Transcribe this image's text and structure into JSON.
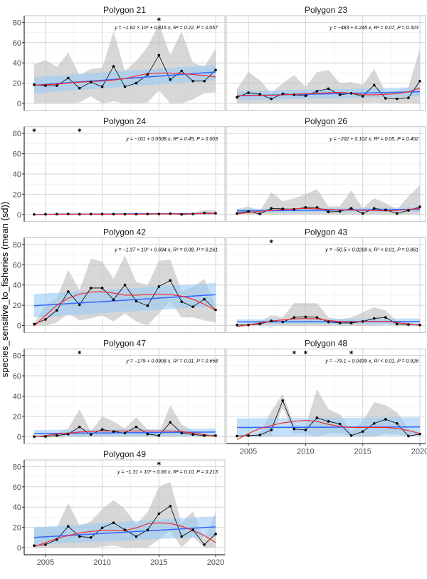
{
  "chart_data": {
    "type": "line",
    "ylabel": "species_sensitive_to_fisheries (mean (sd))",
    "xlabel": "",
    "x": [
      2004,
      2005,
      2006,
      2007,
      2008,
      2009,
      2010,
      2011,
      2012,
      2013,
      2014,
      2015,
      2016,
      2017,
      2018,
      2019,
      2020
    ],
    "xlim": [
      2003.5,
      2020.5
    ],
    "ylim": [
      -7,
      87
    ],
    "x_ticks": [
      2005,
      2010,
      2015,
      2020
    ],
    "y_ticks": [
      0,
      20,
      40,
      60,
      80
    ],
    "grid": true,
    "colors": {
      "mean_line": "#000000",
      "sd_band": "#bdbdbd",
      "lm_line": "#3366ff",
      "lm_band": "#99ccf5",
      "loess_line": "#ff2020"
    },
    "panels": [
      {
        "title": "Polygon 21",
        "equation": "y = −1.62 × 10³ + 0.816 x, R² = 0.22, P = 0.057",
        "stars": [
          2015
        ],
        "mean": [
          18.5,
          17.5,
          17.5,
          25,
          15,
          21,
          16.5,
          36.5,
          16.5,
          20,
          28.5,
          47.5,
          23.5,
          32,
          22,
          22,
          33
        ],
        "upper": [
          38,
          43,
          36,
          50,
          28,
          34,
          35,
          71,
          32,
          42,
          56,
          79,
          48,
          71,
          40,
          36,
          54
        ],
        "lower": [
          0,
          0,
          0,
          0,
          1,
          7,
          0,
          2,
          0,
          0,
          1,
          13,
          0,
          0,
          4,
          10,
          11
        ],
        "lm": [
          18,
          31
        ],
        "lm_ci_lower": [
          10,
          23
        ],
        "lm_ci_upper": [
          26,
          38
        ],
        "loess": [
          18,
          18.5,
          19,
          20,
          21,
          21.5,
          22,
          23,
          24.5,
          27,
          29.5,
          30,
          30,
          29.5,
          28.5,
          27.5,
          26
        ]
      },
      {
        "title": "Polygon 23",
        "equation": "y = −483 + 0.245 x, R² = 0.07, P = 0.323",
        "stars": [],
        "mean": [
          6,
          10.5,
          9,
          4.5,
          9.5,
          8.5,
          7.5,
          12,
          14.5,
          8.5,
          10,
          7,
          18,
          5,
          4.5,
          5.5,
          22
        ],
        "upper": [
          14,
          31,
          23,
          10,
          20,
          28,
          16,
          31,
          33,
          20,
          21,
          18,
          34,
          11,
          12,
          16,
          54
        ],
        "lower": [
          0,
          0,
          0,
          0,
          0,
          0,
          0,
          0,
          0,
          0,
          0,
          0,
          1,
          0,
          0,
          0,
          0
        ],
        "lm": [
          7.5,
          11.5
        ],
        "lm_ci_lower": [
          3,
          7
        ],
        "lm_ci_upper": [
          12,
          16
        ],
        "loess": [
          7.5,
          8,
          8,
          8,
          8.5,
          9,
          9.5,
          10,
          10.5,
          11,
          10,
          8.5,
          8.5,
          9,
          9.5,
          11.5,
          15
        ]
      },
      {
        "title": "Polygon 24",
        "equation": "y = −101 + 0.0508 x, R² = 0.45, P = 0.003",
        "stars": [
          2004,
          2008
        ],
        "mean": [
          0,
          0.2,
          0.3,
          0.4,
          0.2,
          0.3,
          0.3,
          0.3,
          0.2,
          0.3,
          0.4,
          0.5,
          0.8,
          0,
          0.5,
          1.5,
          1.2
        ],
        "upper": [
          0,
          0.5,
          0.8,
          1,
          0.6,
          0.8,
          0.8,
          0.8,
          0.6,
          0.8,
          1,
          1.2,
          1.8,
          0.5,
          1.5,
          4.5,
          4
        ],
        "lower": [
          0,
          0,
          0,
          0,
          0,
          0,
          0,
          0,
          0,
          0,
          0,
          0,
          0,
          0,
          0,
          0,
          0
        ],
        "lm": [
          0,
          1
        ],
        "lm_ci_lower": [
          -0.5,
          0.3
        ],
        "lm_ci_upper": [
          0.5,
          1.7
        ],
        "loess": [
          0,
          0.1,
          0.2,
          0.25,
          0.3,
          0.3,
          0.3,
          0.3,
          0.3,
          0.35,
          0.4,
          0.5,
          0.5,
          0.5,
          0.7,
          1,
          1.2
        ]
      },
      {
        "title": "Polygon 26",
        "equation": "y = −202 + 0.102 x, R² = 0.05, P = 0.402",
        "stars": [],
        "mean": [
          1,
          3,
          0.5,
          6,
          5.5,
          5,
          7,
          7,
          2.5,
          3,
          6,
          1,
          6,
          4.5,
          1,
          4,
          7.5
        ],
        "upper": [
          5,
          8,
          3,
          22,
          13,
          16,
          20,
          25,
          8,
          8,
          24,
          6,
          16,
          11,
          5,
          18,
          29
        ],
        "lower": [
          0,
          0,
          0,
          0,
          0,
          0,
          0,
          0,
          0,
          0,
          0,
          0,
          0,
          0,
          0,
          0,
          0
        ],
        "lm": [
          3.5,
          5
        ],
        "lm_ci_lower": [
          1.5,
          3
        ],
        "lm_ci_upper": [
          5.5,
          7
        ],
        "loess": [
          0.5,
          2,
          3,
          4,
          5,
          5.5,
          6,
          5.5,
          5,
          4.5,
          4.5,
          4,
          4,
          3.5,
          4,
          5,
          6
        ]
      },
      {
        "title": "Polygon 42",
        "equation": "y = −1.37 × 10³ + 0.694 x, R² = 0.08, P = 0.261",
        "stars": [],
        "mean": [
          1.5,
          6,
          15,
          33.5,
          20.5,
          37,
          37,
          25.5,
          40,
          24,
          19.5,
          38.5,
          44.5,
          23.5,
          18.5,
          26,
          15.5
        ],
        "upper": [
          2,
          20,
          27,
          55,
          35,
          66,
          63,
          46,
          69,
          43,
          40,
          64,
          65,
          34,
          38,
          46,
          20
        ],
        "lower": [
          0,
          0,
          3,
          12,
          5,
          7,
          10,
          4,
          12,
          4,
          0,
          12,
          24,
          8,
          8,
          5,
          3
        ],
        "lm": [
          19.5,
          30.5
        ],
        "lm_ci_lower": [
          8,
          19
        ],
        "lm_ci_upper": [
          31,
          42
        ],
        "loess": [
          -0.5,
          10,
          20,
          27,
          31,
          33,
          33.5,
          32,
          30,
          30,
          30.5,
          31,
          30.5,
          29,
          26,
          21,
          15
        ]
      },
      {
        "title": "Polygon 43",
        "equation": "y = −50.5 + 0.0269 x, R² < 0.01, P = 0.861",
        "stars": [
          2007
        ],
        "mean": [
          0.5,
          0.5,
          1.5,
          4.5,
          3.5,
          8,
          8.5,
          8,
          3.5,
          2.5,
          2.5,
          4,
          7,
          8,
          1.5,
          1,
          0.5
        ],
        "upper": [
          1,
          2,
          4,
          10,
          8,
          22,
          22,
          22,
          8,
          6,
          8,
          13,
          18,
          15,
          4,
          3,
          1
        ],
        "lower": [
          0,
          0,
          0,
          0,
          0,
          0,
          0,
          0,
          0,
          0,
          0,
          0,
          0,
          1,
          0,
          0,
          0
        ],
        "lm": [
          3.5,
          4
        ],
        "lm_ci_lower": [
          2,
          1
        ],
        "lm_ci_upper": [
          6,
          7
        ],
        "loess": [
          -1,
          0.5,
          2.5,
          4.5,
          5.5,
          6.5,
          7,
          6.5,
          5,
          4,
          3.5,
          4,
          4,
          4,
          3,
          1.5,
          0
        ]
      },
      {
        "title": "Polygon 47",
        "equation": "y = −179 + 0.0908 x, R² = 0.01, P = 0.658",
        "stars": [
          2008
        ],
        "mean": [
          0,
          0,
          1,
          2.5,
          9.5,
          2,
          7,
          5,
          3.5,
          9.5,
          2.5,
          1,
          14,
          3.5,
          2,
          1,
          1
        ],
        "upper": [
          0,
          1,
          3,
          8,
          27,
          5,
          20,
          15,
          8,
          19,
          7,
          3,
          31,
          12,
          6,
          3,
          2
        ],
        "lower": [
          0,
          0,
          0,
          0,
          0,
          0,
          0,
          0,
          0,
          0,
          0,
          0,
          0,
          0,
          0,
          0,
          0
        ],
        "lm": [
          3,
          4.5
        ],
        "lm_ci_lower": [
          0,
          1
        ],
        "lm_ci_upper": [
          6.5,
          8
        ],
        "loess": [
          -0.5,
          1,
          2.5,
          3.5,
          4.5,
          5,
          5.5,
          5.5,
          5.5,
          5.5,
          5.5,
          5.5,
          5.5,
          5,
          3.5,
          2,
          0
        ]
      },
      {
        "title": "Polygon 48",
        "equation": "y = −79.1 + 0.0439 x, R² < 0.01, P = 0.926",
        "stars": [
          2009,
          2010,
          2014
        ],
        "mean": [
          0.5,
          1,
          1.5,
          6.5,
          35.5,
          7.5,
          6.5,
          18.5,
          15,
          12.5,
          1,
          5,
          13,
          17,
          13,
          0.5,
          2.5
        ],
        "upper": [
          0,
          1,
          4,
          25,
          42,
          12,
          10,
          47,
          27,
          22,
          5,
          15,
          34,
          31,
          24,
          8,
          4
        ],
        "lower": [
          0,
          0,
          0,
          0,
          29,
          3,
          3,
          0,
          3,
          3,
          0,
          0,
          0,
          3,
          2,
          0,
          1
        ],
        "lm": [
          9,
          9.5
        ],
        "lm_ci_lower": [
          0,
          1
        ],
        "lm_ci_upper": [
          18,
          19
        ],
        "loess": [
          -3,
          3,
          8,
          11,
          13.5,
          15,
          16,
          15,
          12,
          10,
          9,
          9,
          9,
          9,
          8,
          6,
          3
        ]
      },
      {
        "title": "Polygon 49",
        "equation": "y = −1.31 × 10³ + 0.66 x, R² = 0.10, P = 0.213",
        "stars": [
          2015
        ],
        "mean": [
          2,
          3,
          8,
          21,
          11,
          10,
          19.5,
          24.5,
          17.5,
          11,
          17.5,
          33.5,
          41,
          11,
          17.5,
          3,
          13.5
        ],
        "upper": [
          20,
          20,
          20,
          44,
          22,
          26,
          38,
          47,
          38,
          23,
          35,
          60,
          65,
          24,
          36,
          8,
          35
        ],
        "lower": [
          0,
          0,
          0,
          0,
          0,
          0,
          1,
          2,
          0,
          0,
          0,
          8,
          17,
          0,
          11,
          0,
          0
        ],
        "lm": [
          10,
          20.5
        ],
        "lm_ci_lower": [
          3,
          11
        ],
        "lm_ci_upper": [
          20,
          31
        ],
        "loess": [
          1,
          5,
          9,
          12,
          14.5,
          16,
          17,
          17,
          17,
          19.5,
          23.5,
          24.5,
          24,
          21,
          17,
          12,
          5
        ]
      }
    ]
  }
}
